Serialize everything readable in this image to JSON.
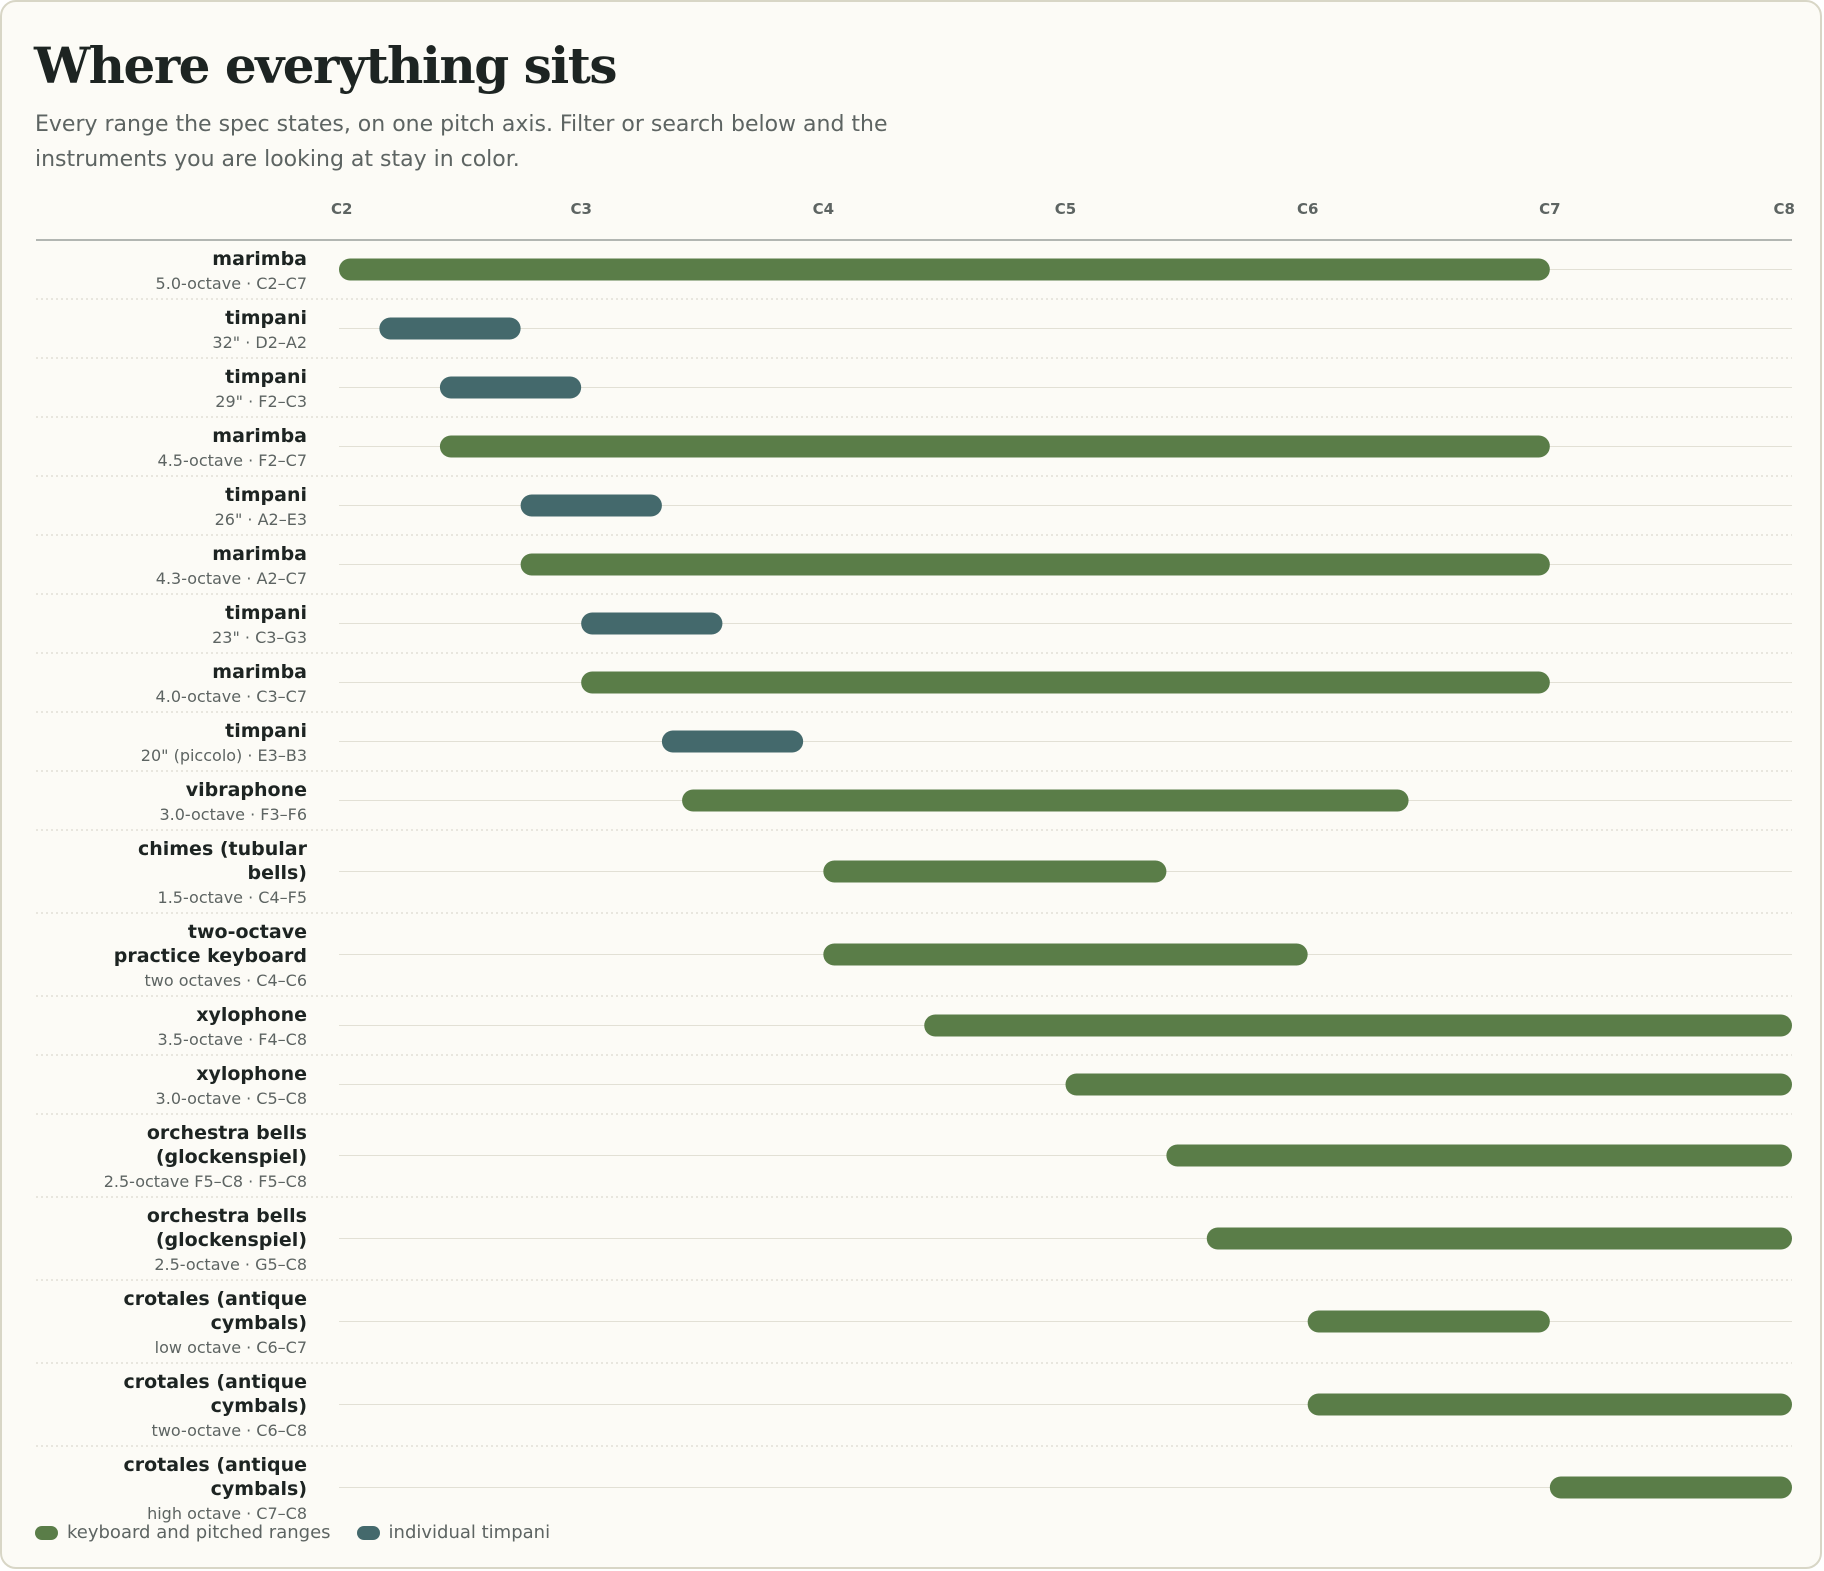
{
  "header": {
    "title": "Where everything sits",
    "subtitle": "Every range the spec states, on one pitch axis. Filter or search below and the instruments you are looking at stay in color."
  },
  "colors": {
    "keyboard": "#5a7d48",
    "timpani": "#44696c"
  },
  "legend": [
    {
      "label": "keyboard and pitched ranges",
      "color": "#5a7d48"
    },
    {
      "label": "individual timpani",
      "color": "#44696c"
    }
  ],
  "chart_data": {
    "type": "bar",
    "orientation": "horizontal-range",
    "x_axis": {
      "ticks": [
        "C2",
        "C3",
        "C4",
        "C5",
        "C6",
        "C7",
        "C8"
      ],
      "range": [
        "C2",
        "C8"
      ]
    },
    "rows": [
      {
        "name": "marimba",
        "detail": "5.0-octave · C2–C7",
        "low": "C2",
        "high": "C7",
        "kind": "keyboard"
      },
      {
        "name": "timpani",
        "detail": "32\" · D2–A2",
        "low": "D2",
        "high": "A2",
        "kind": "timpani"
      },
      {
        "name": "timpani",
        "detail": "29\" · F2–C3",
        "low": "F2",
        "high": "C3",
        "kind": "timpani"
      },
      {
        "name": "marimba",
        "detail": "4.5-octave · F2–C7",
        "low": "F2",
        "high": "C7",
        "kind": "keyboard"
      },
      {
        "name": "timpani",
        "detail": "26\" · A2–E3",
        "low": "A2",
        "high": "E3",
        "kind": "timpani"
      },
      {
        "name": "marimba",
        "detail": "4.3-octave · A2–C7",
        "low": "A2",
        "high": "C7",
        "kind": "keyboard"
      },
      {
        "name": "timpani",
        "detail": "23\" · C3–G3",
        "low": "C3",
        "high": "G3",
        "kind": "timpani"
      },
      {
        "name": "marimba",
        "detail": "4.0-octave · C3–C7",
        "low": "C3",
        "high": "C7",
        "kind": "keyboard"
      },
      {
        "name": "timpani",
        "detail": "20\" (piccolo) · E3–B3",
        "low": "E3",
        "high": "B3",
        "kind": "timpani"
      },
      {
        "name": "vibraphone",
        "detail": "3.0-octave · F3–F6",
        "low": "F3",
        "high": "F6",
        "kind": "keyboard"
      },
      {
        "name": "chimes (tubular bells)",
        "detail": "1.5-octave · C4–F5",
        "low": "C4",
        "high": "F5",
        "kind": "keyboard"
      },
      {
        "name": "two-octave practice keyboard",
        "detail": "two octaves · C4–C6",
        "low": "C4",
        "high": "C6",
        "kind": "keyboard"
      },
      {
        "name": "xylophone",
        "detail": "3.5-octave · F4–C8",
        "low": "F4",
        "high": "C8",
        "kind": "keyboard"
      },
      {
        "name": "xylophone",
        "detail": "3.0-octave · C5–C8",
        "low": "C5",
        "high": "C8",
        "kind": "keyboard"
      },
      {
        "name": "orchestra bells (glockenspiel)",
        "detail": "2.5-octave F5–C8 · F5–C8",
        "low": "F5",
        "high": "C8",
        "kind": "keyboard"
      },
      {
        "name": "orchestra bells (glockenspiel)",
        "detail": "2.5-octave · G5–C8",
        "low": "G5",
        "high": "C8",
        "kind": "keyboard"
      },
      {
        "name": "crotales (antique cymbals)",
        "detail": "low octave · C6–C7",
        "low": "C6",
        "high": "C7",
        "kind": "keyboard"
      },
      {
        "name": "crotales (antique cymbals)",
        "detail": "two-octave · C6–C8",
        "low": "C6",
        "high": "C8",
        "kind": "keyboard"
      },
      {
        "name": "crotales (antique cymbals)",
        "detail": "high octave · C7–C8",
        "low": "C7",
        "high": "C8",
        "kind": "keyboard"
      }
    ]
  }
}
